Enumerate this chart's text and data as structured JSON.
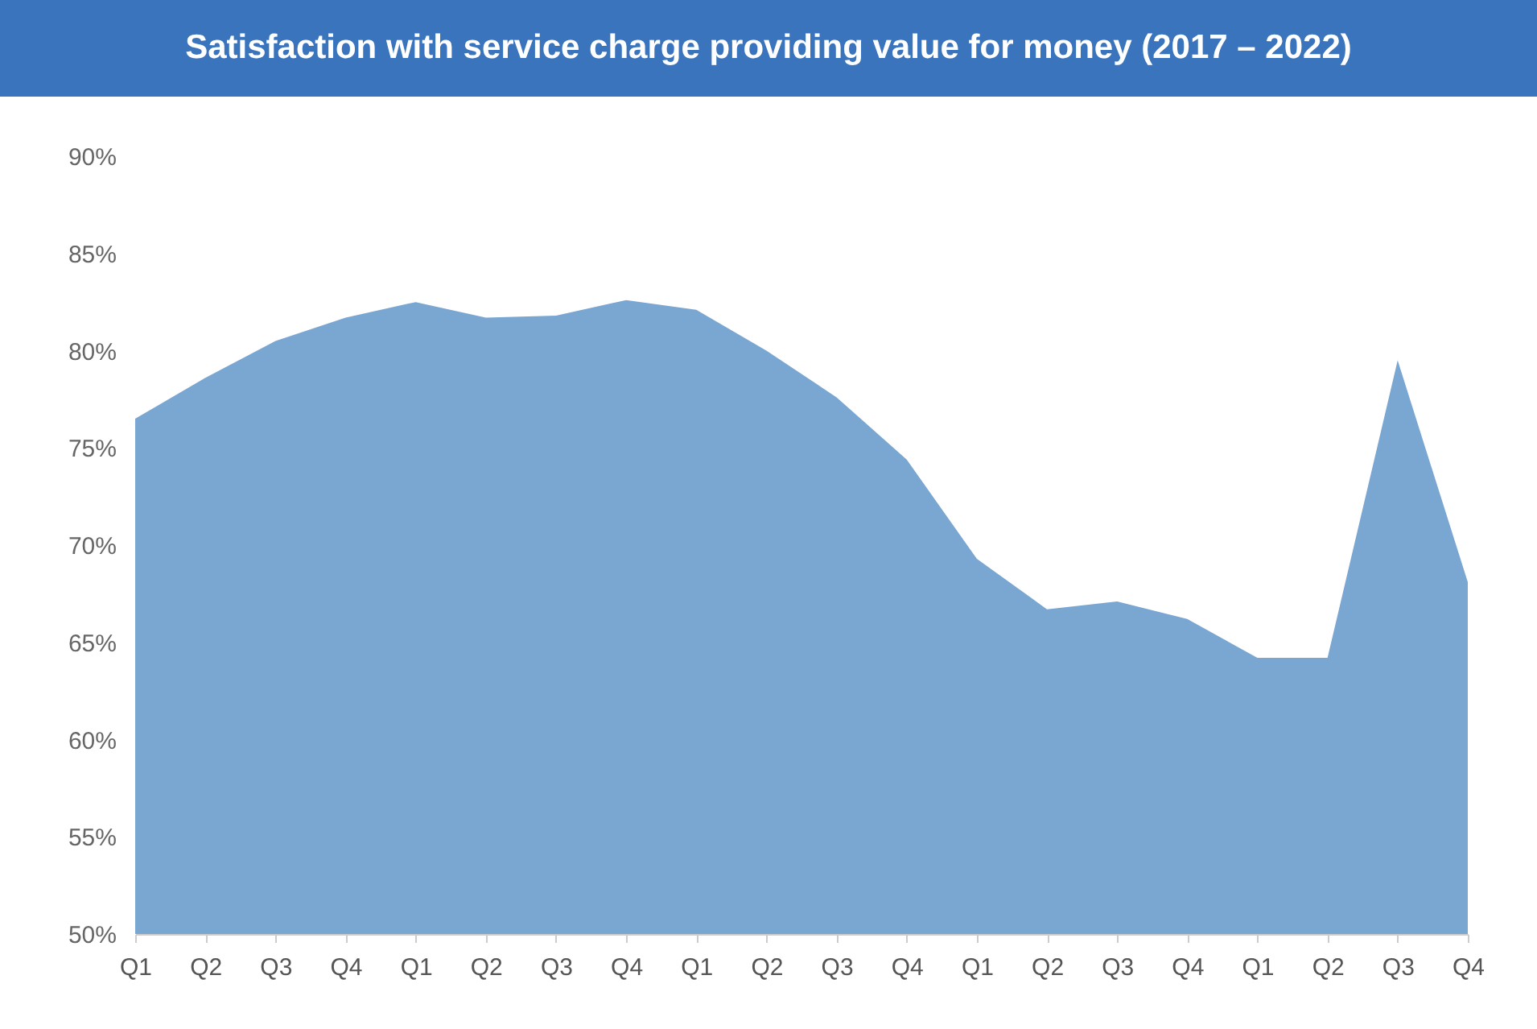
{
  "chart_data": {
    "type": "area",
    "title": "Satisfaction with service charge providing value for money (2017 – 2022)",
    "categories": [
      "Q1",
      "Q2",
      "Q3",
      "Q4",
      "Q1",
      "Q2",
      "Q3",
      "Q4",
      "Q1",
      "Q2",
      "Q3",
      "Q4",
      "Q1",
      "Q2",
      "Q3",
      "Q4",
      "Q1",
      "Q2",
      "Q3",
      "Q4"
    ],
    "series": [
      {
        "color": "#7aa6d2",
        "values": [
          76.5,
          78.6,
          80.5,
          81.7,
          82.5,
          81.7,
          81.8,
          82.6,
          82.1,
          80.0,
          77.6,
          74.4,
          69.3,
          66.7,
          67.1,
          66.2,
          64.2,
          64.2,
          79.5,
          68.1
        ]
      }
    ],
    "ylim": [
      50,
      90
    ],
    "yticks": [
      {
        "value": 50,
        "label": "50%"
      },
      {
        "value": 55,
        "label": "55%"
      },
      {
        "value": 60,
        "label": "60%"
      },
      {
        "value": 65,
        "label": "65%"
      },
      {
        "value": 70,
        "label": "70%"
      },
      {
        "value": 75,
        "label": "75%"
      },
      {
        "value": 80,
        "label": "80%"
      },
      {
        "value": 85,
        "label": "85%"
      },
      {
        "value": 90,
        "label": "90%"
      }
    ],
    "grid": false
  }
}
